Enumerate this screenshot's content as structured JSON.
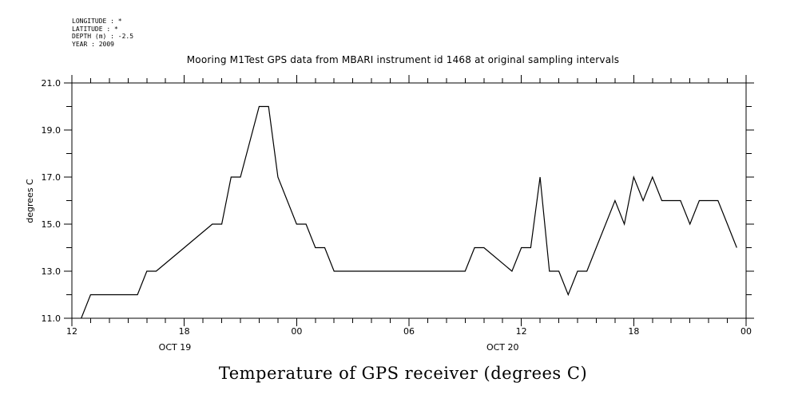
{
  "header": {
    "longitude": "LONGITUDE : *",
    "latitude": "LATITUDE : *",
    "depth": "DEPTH (m) : -2.5",
    "year": "YEAR : 2009"
  },
  "chart_data": {
    "type": "line",
    "title": "Mooring M1Test GPS data from MBARI instrument id 1468 at original sampling intervals",
    "xlabel": "Temperature of GPS receiver (degrees C)",
    "ylabel": "degrees C",
    "ylim": [
      11.0,
      21.0
    ],
    "yticks": [
      "11.0",
      "13.0",
      "15.0",
      "17.0",
      "19.0",
      "21.0"
    ],
    "xlim": [
      "2009-10-19T12:00",
      "2009-10-21T00:00"
    ],
    "xticks": [
      {
        "t": "2009-10-19T12:00",
        "label": "12"
      },
      {
        "t": "2009-10-19T18:00",
        "label": "18"
      },
      {
        "t": "2009-10-20T00:00",
        "label": "00"
      },
      {
        "t": "2009-10-20T06:00",
        "label": "06"
      },
      {
        "t": "2009-10-20T12:00",
        "label": "12"
      },
      {
        "t": "2009-10-20T18:00",
        "label": "18"
      },
      {
        "t": "2009-10-21T00:00",
        "label": "00"
      }
    ],
    "date_labels": [
      {
        "t": "2009-10-19T17:30",
        "label": "OCT 19"
      },
      {
        "t": "2009-10-20T11:00",
        "label": "OCT 20"
      }
    ],
    "grid": false,
    "series": [
      {
        "x": [
          "2009-10-19T12:30",
          "2009-10-19T13:00",
          "2009-10-19T15:30",
          "2009-10-19T16:00",
          "2009-10-19T16:30",
          "2009-10-19T18:00",
          "2009-10-19T19:30",
          "2009-10-19T20:00",
          "2009-10-19T20:30",
          "2009-10-19T21:00",
          "2009-10-19T22:00",
          "2009-10-19T22:30",
          "2009-10-19T23:00",
          "2009-10-19T23:30",
          "2009-10-20T00:00",
          "2009-10-20T00:30",
          "2009-10-20T01:00",
          "2009-10-20T01:30",
          "2009-10-20T02:00",
          "2009-10-20T02:30",
          "2009-10-20T09:00",
          "2009-10-20T09:30",
          "2009-10-20T10:00",
          "2009-10-20T11:30",
          "2009-10-20T12:00",
          "2009-10-20T12:30",
          "2009-10-20T13:00",
          "2009-10-20T13:30",
          "2009-10-20T14:00",
          "2009-10-20T14:30",
          "2009-10-20T15:00",
          "2009-10-20T15:30",
          "2009-10-20T16:00",
          "2009-10-20T17:00",
          "2009-10-20T17:30",
          "2009-10-20T18:00",
          "2009-10-20T18:30",
          "2009-10-20T19:00",
          "2009-10-20T19:30",
          "2009-10-20T20:30",
          "2009-10-20T21:00",
          "2009-10-20T21:30",
          "2009-10-20T22:30",
          "2009-10-20T23:00",
          "2009-10-20T23:30"
        ],
        "y": [
          11.0,
          12.0,
          12.0,
          13.0,
          13.0,
          14.0,
          15.0,
          15.0,
          17.0,
          17.0,
          20.0,
          20.0,
          17.0,
          16.0,
          15.0,
          15.0,
          14.0,
          14.0,
          13.0,
          13.0,
          13.0,
          14.0,
          14.0,
          13.0,
          14.0,
          14.0,
          17.0,
          13.0,
          13.0,
          12.0,
          13.0,
          13.0,
          14.0,
          16.0,
          15.0,
          17.0,
          16.0,
          17.0,
          16.0,
          16.0,
          15.0,
          16.0,
          16.0,
          15.0,
          14.0
        ]
      }
    ]
  }
}
